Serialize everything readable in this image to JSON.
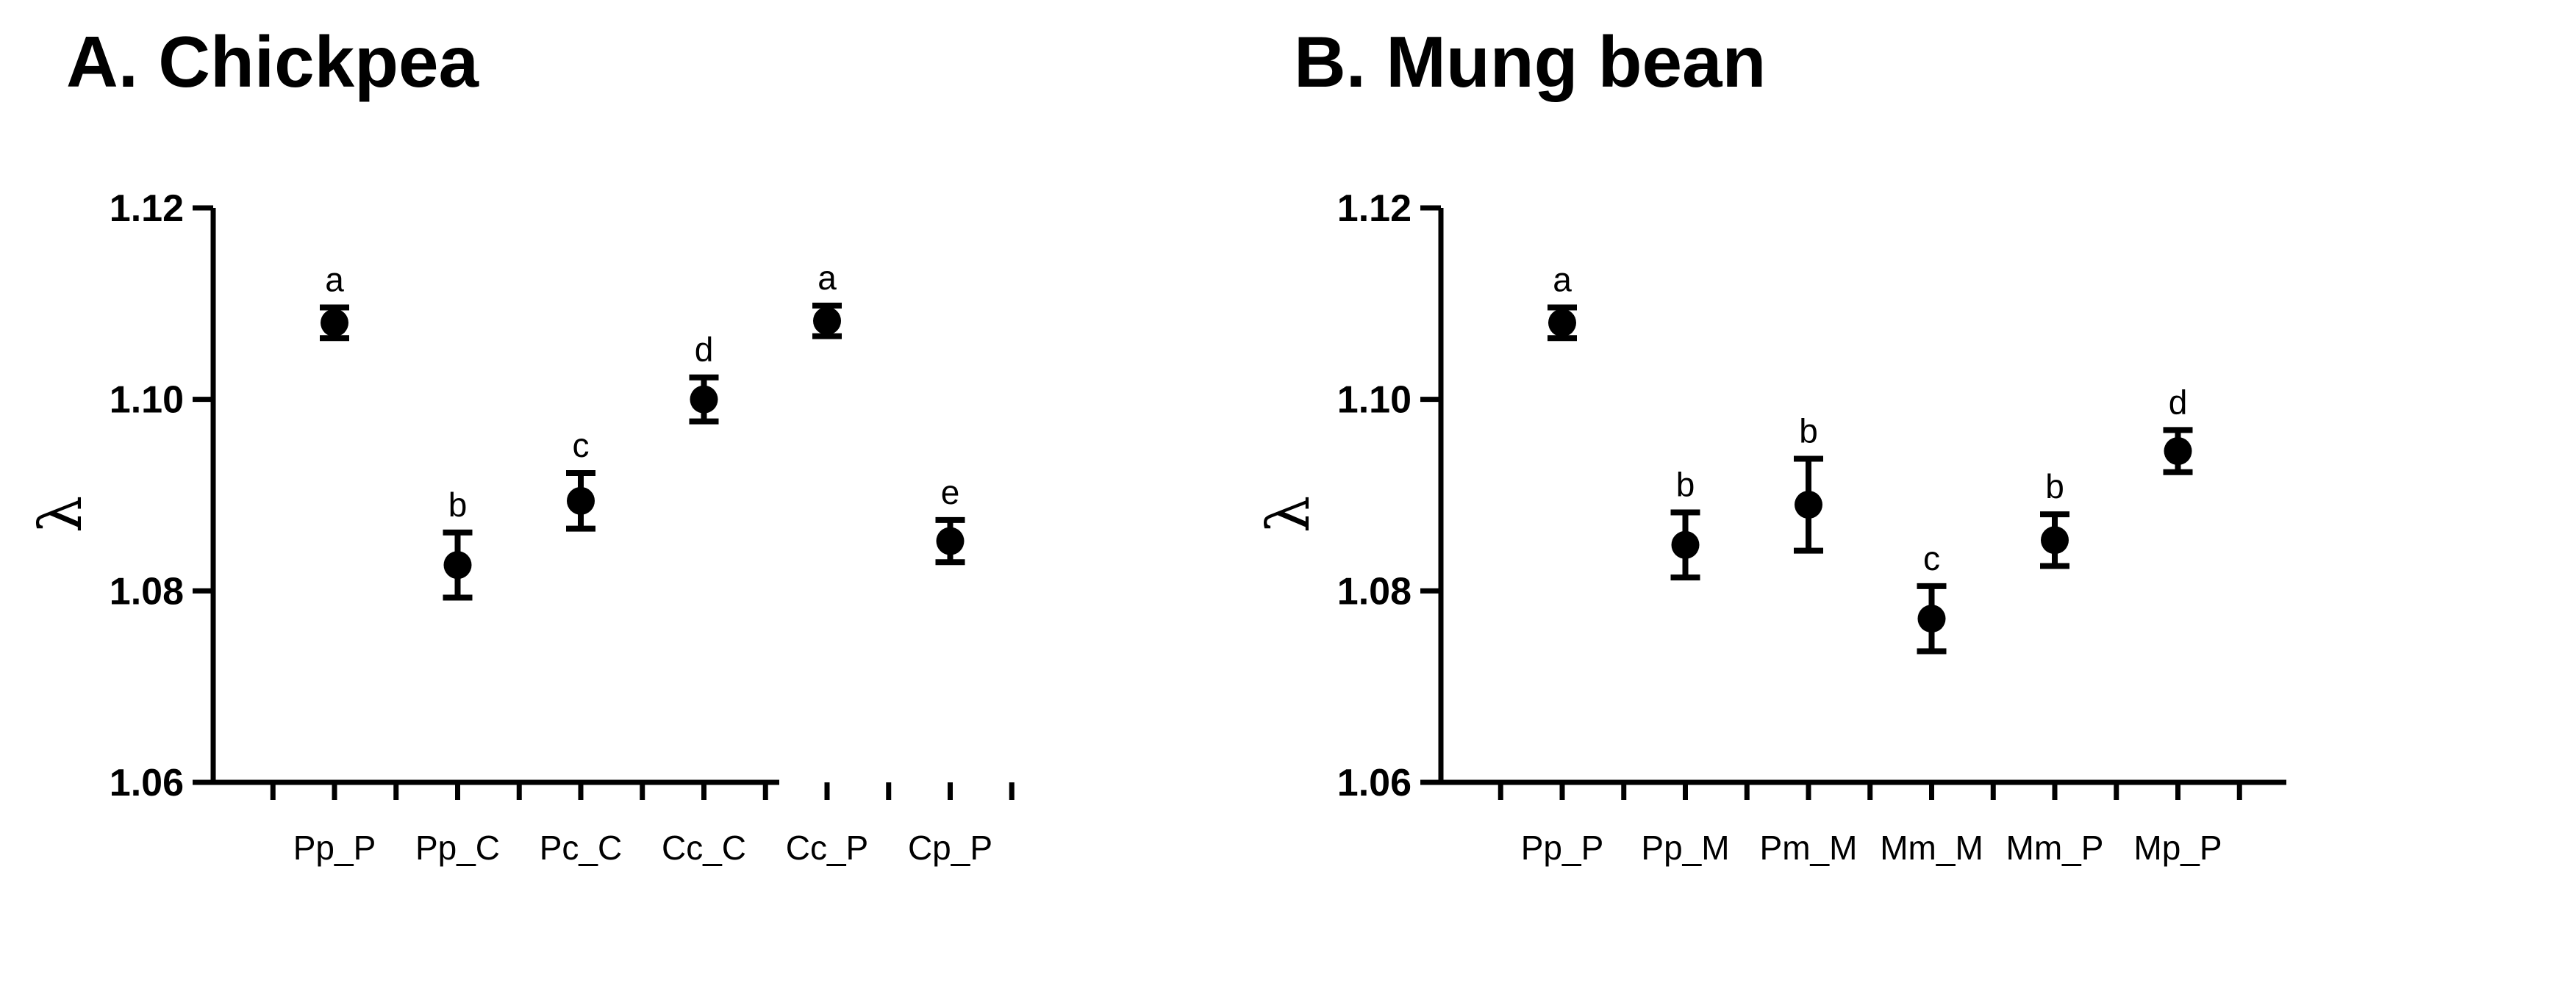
{
  "chart_data": [
    {
      "type": "scatter",
      "title": "A. Chickpea",
      "ylabel": "λ",
      "ylim": [
        1.06,
        1.12
      ],
      "yticks": [
        "1.06",
        "1.08",
        "1.10",
        "1.12"
      ],
      "categories": [
        "Pp_P",
        "Pp_C",
        "Pc_C",
        "Cc_C",
        "Cc_P",
        "Cp_P"
      ],
      "values": [
        1.108,
        1.0827,
        1.0894,
        1.1,
        1.1082,
        1.0852
      ],
      "error": [
        0.0016,
        0.0034,
        0.0029,
        0.0023,
        0.0016,
        0.0022
      ],
      "letters": [
        "a",
        "b",
        "c",
        "d",
        "a",
        "e"
      ]
    },
    {
      "type": "scatter",
      "title": "B. Mung bean",
      "ylabel": "λ",
      "ylim": [
        1.06,
        1.12
      ],
      "yticks": [
        "1.06",
        "1.08",
        "1.10",
        "1.12"
      ],
      "categories": [
        "Pp_P",
        "Pp_M",
        "Pm_M",
        "Mm_M",
        "Mm_P",
        "Mp_P"
      ],
      "values": [
        1.108,
        1.0848,
        1.089,
        1.0771,
        1.0853,
        1.0946
      ],
      "error": [
        0.0016,
        0.0034,
        0.0048,
        0.0034,
        0.0027,
        0.0022
      ],
      "letters": [
        "a",
        "b",
        "b",
        "c",
        "b",
        "d"
      ]
    }
  ]
}
